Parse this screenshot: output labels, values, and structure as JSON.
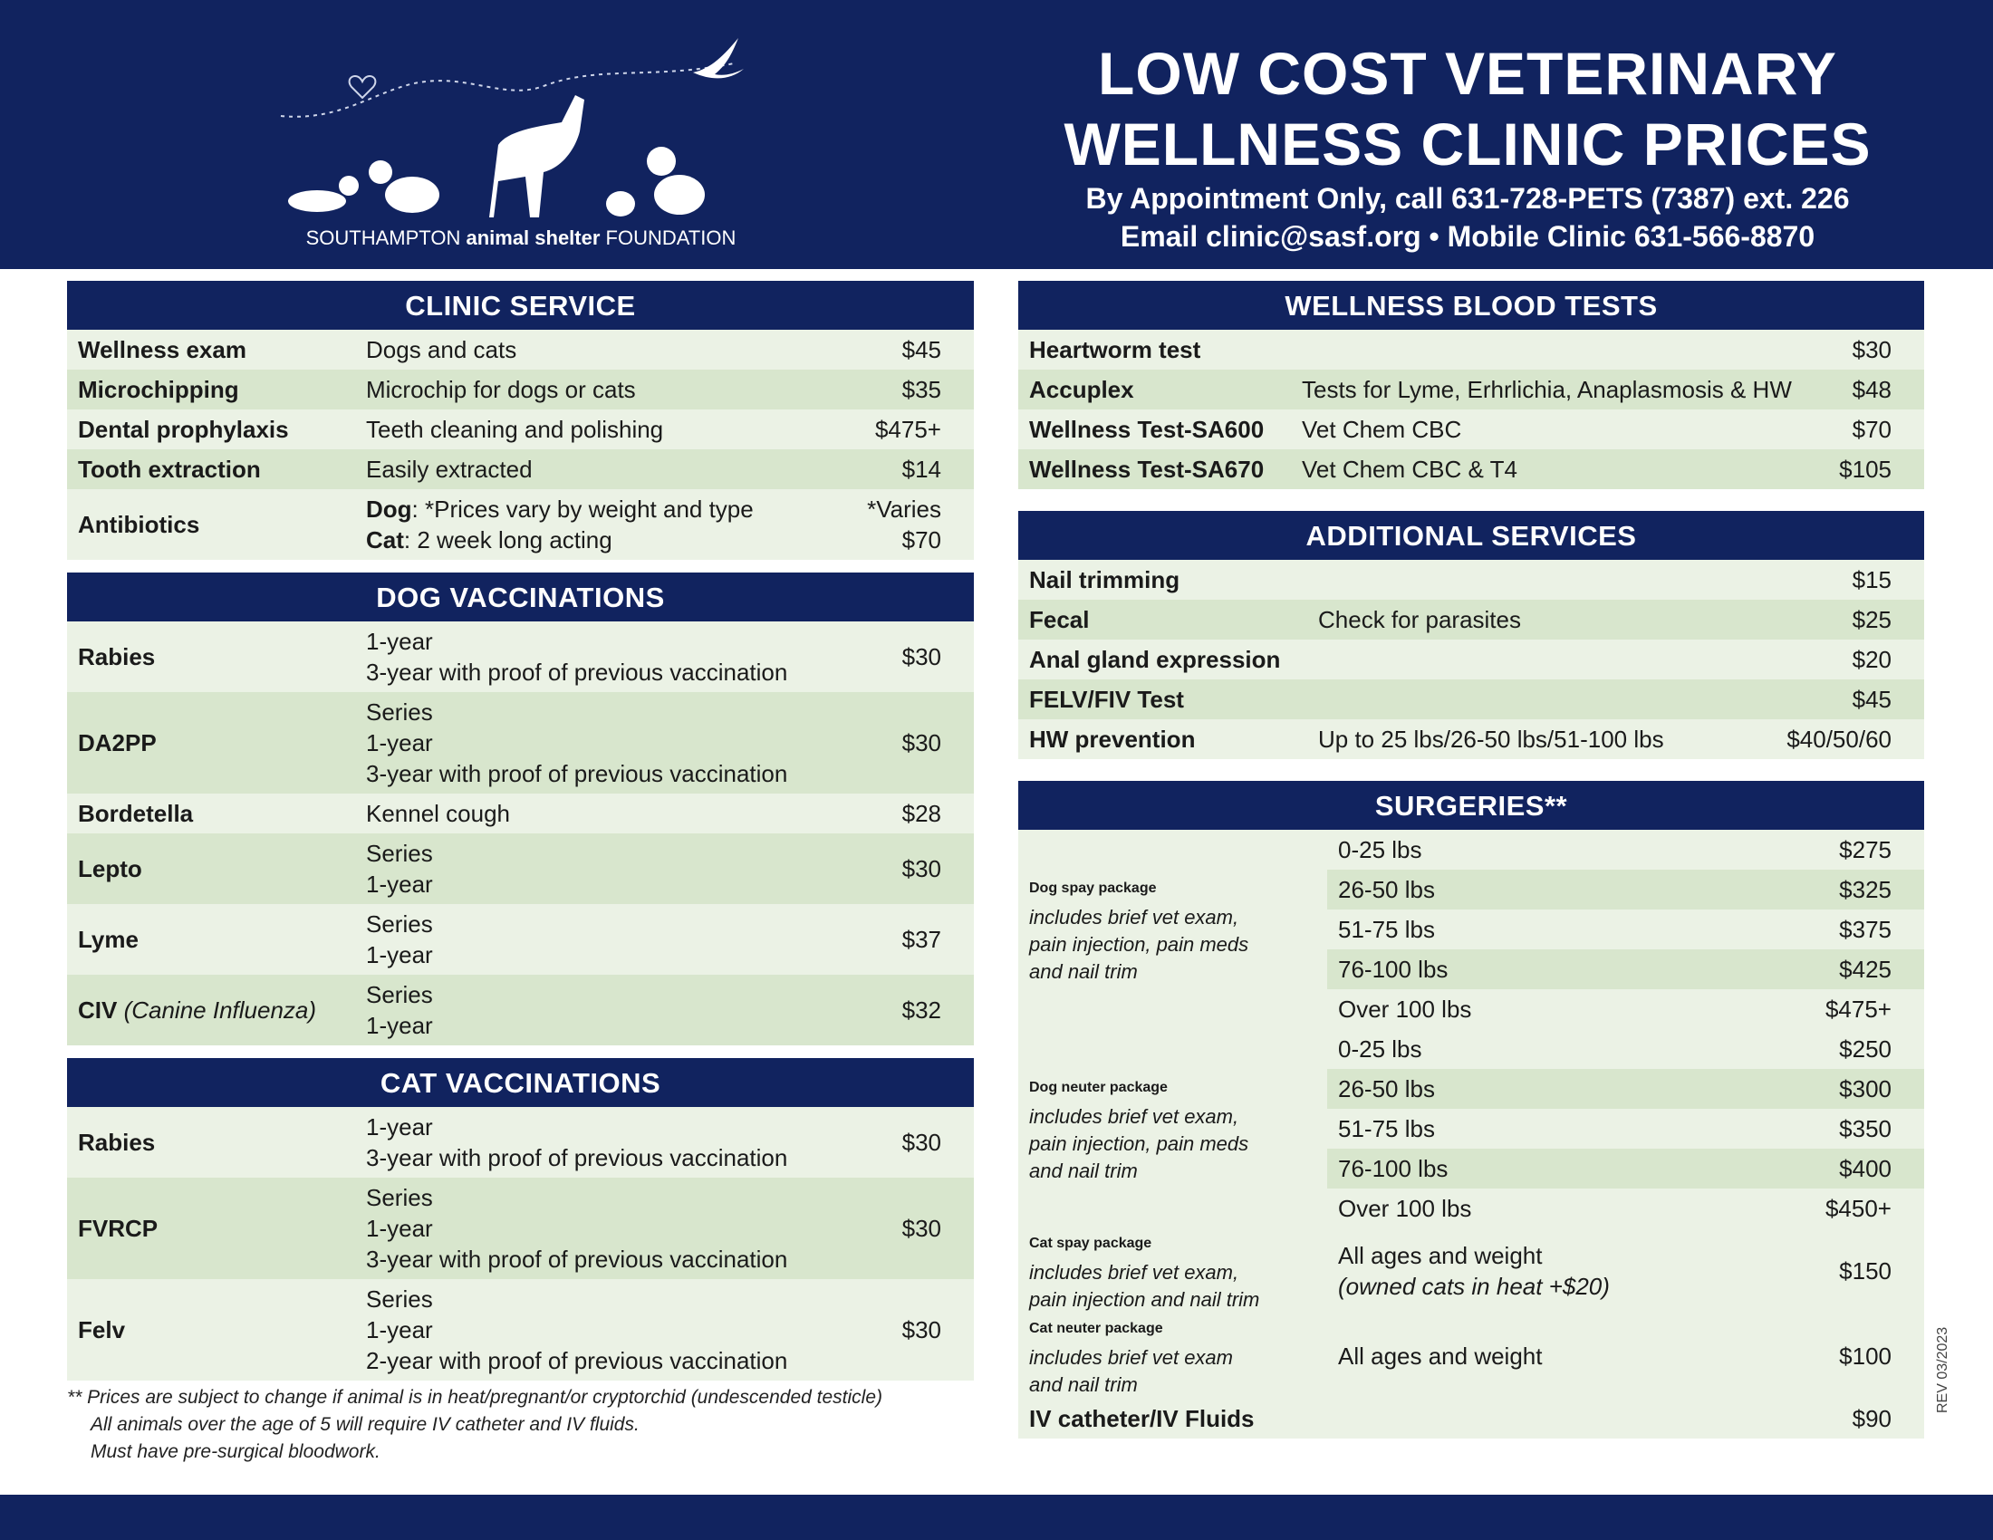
{
  "header": {
    "org": {
      "pre": "SOUTHAMPTON",
      "mid": "animal shelter",
      "post": "FOUNDATION"
    },
    "title": [
      "LOW COST VETERINARY",
      "WELLNESS CLINIC PRICES"
    ],
    "contact": [
      "By Appointment Only, call 631-728-PETS (7387) ext. 226",
      "Email clinic@sasf.org • Mobile Clinic 631-566-8870"
    ]
  },
  "left": [
    {
      "title": "CLINIC SERVICE",
      "rows": [
        {
          "name": "Wellness exam",
          "desc": [
            "Dogs and cats"
          ],
          "price": "$45"
        },
        {
          "name": "Microchipping",
          "desc": [
            "Microchip for dogs or cats"
          ],
          "price": "$35"
        },
        {
          "name": "Dental prophylaxis",
          "desc": [
            "Teeth cleaning and polishing"
          ],
          "price": "$475+"
        },
        {
          "name": "Tooth extraction",
          "desc": [
            "Easily extracted"
          ],
          "price": "$14"
        },
        {
          "name": "Antibiotics",
          "desc": [
            {
              "label": "Dog",
              "text": ": *Prices vary by weight and type"
            },
            {
              "label": "Cat",
              "text": ": 2 week long acting"
            }
          ],
          "price": [
            "*Varies",
            "$70"
          ]
        }
      ]
    },
    {
      "title": "DOG VACCINATIONS",
      "rows": [
        {
          "name": "Rabies",
          "desc": [
            "1-year",
            "3-year with proof of previous vaccination"
          ],
          "price": "$30"
        },
        {
          "name": "DA2PP",
          "desc": [
            "Series",
            "1-year",
            "3-year with proof of previous vaccination"
          ],
          "price": "$30"
        },
        {
          "name": "Bordetella",
          "desc": [
            "Kennel cough"
          ],
          "price": "$28"
        },
        {
          "name": "Lepto",
          "desc": [
            "Series",
            "1-year"
          ],
          "price": "$30"
        },
        {
          "name": "Lyme",
          "desc": [
            "Series",
            "1-year"
          ],
          "price": "$37"
        },
        {
          "name": "CIV",
          "name_italic": "(Canine Influenza)",
          "desc": [
            "Series",
            "1-year"
          ],
          "price": "$32"
        }
      ]
    },
    {
      "title": "CAT VACCINATIONS",
      "rows": [
        {
          "name": "Rabies",
          "desc": [
            "1-year",
            "3-year with proof of previous vaccination"
          ],
          "price": "$30"
        },
        {
          "name": "FVRCP",
          "desc": [
            "Series",
            "1-year",
            "3-year with proof of previous vaccination"
          ],
          "price": "$30"
        },
        {
          "name": "Felv",
          "desc": [
            "Series",
            "1-year",
            "2-year with proof of previous vaccination"
          ],
          "price": "$30"
        }
      ]
    }
  ],
  "right": [
    {
      "title": "WELLNESS BLOOD TESTS",
      "rows": [
        {
          "name": "Heartworm test",
          "desc": [],
          "price": "$30"
        },
        {
          "name": "Accuplex",
          "desc": [
            "Tests for Lyme, Erhrlichia, Anaplasmosis & HW"
          ],
          "price": "$48"
        },
        {
          "name": "Wellness Test-SA600",
          "desc": [
            "Vet Chem CBC"
          ],
          "price": "$70"
        },
        {
          "name": "Wellness Test-SA670",
          "desc": [
            "Vet Chem CBC & T4"
          ],
          "price": "$105"
        }
      ]
    },
    {
      "title": "ADDITIONAL SERVICES",
      "rows": [
        {
          "name": "Nail trimming",
          "desc": [],
          "price": "$15"
        },
        {
          "name": "Fecal",
          "desc": [
            "Check for parasites"
          ],
          "price": "$25"
        },
        {
          "name": "Anal gland expression",
          "desc": [],
          "price": "$20"
        },
        {
          "name": "FELV/FIV Test",
          "desc": [],
          "price": "$45"
        },
        {
          "name": "HW prevention",
          "desc": [
            "Up to 25 lbs/26-50 lbs/51-100 lbs"
          ],
          "price": "$40/50/60"
        }
      ]
    },
    {
      "title": "SURGERIES**",
      "rows": [
        {
          "name": "Dog spay package",
          "note": [
            "includes brief vet exam,",
            "pain injection, pain meds",
            "and nail trim"
          ],
          "options": [
            {
              "weight": "0-25 lbs",
              "price": "$275"
            },
            {
              "weight": "26-50 lbs",
              "price": "$325"
            },
            {
              "weight": "51-75 lbs",
              "price": "$375"
            },
            {
              "weight": "76-100 lbs",
              "price": "$425"
            },
            {
              "weight": "Over 100 lbs",
              "price": "$475+"
            }
          ]
        },
        {
          "name": "Dog neuter package",
          "note": [
            "includes brief vet exam,",
            "pain injection, pain meds",
            "and nail trim"
          ],
          "options": [
            {
              "weight": "0-25 lbs",
              "price": "$250"
            },
            {
              "weight": "26-50 lbs",
              "price": "$300"
            },
            {
              "weight": "51-75 lbs",
              "price": "$350"
            },
            {
              "weight": "76-100 lbs",
              "price": "$400"
            },
            {
              "weight": "Over 100 lbs",
              "price": "$450+"
            }
          ]
        },
        {
          "name": "Cat spay package",
          "note": [
            "includes brief vet exam,",
            "pain injection and nail trim"
          ],
          "desc": [
            "All ages and weight",
            {
              "italic": "(owned cats in heat +$20)"
            }
          ],
          "price": "$150"
        },
        {
          "name": "Cat neuter package",
          "note": [
            "includes brief vet exam",
            "and nail trim"
          ],
          "desc": [
            "All ages and weight"
          ],
          "price": "$100"
        },
        {
          "name": "IV catheter/IV Fluids",
          "desc": [],
          "price": "$90"
        }
      ]
    }
  ],
  "footnote": [
    "** Prices are subject to change if animal is in heat/pregnant/or cryptorchid  (undescended testicle)",
    "All animals over the age of 5 will require IV catheter and IV fluids.",
    "Must have pre-surgical bloodwork."
  ],
  "revision": "REV 03/2023"
}
